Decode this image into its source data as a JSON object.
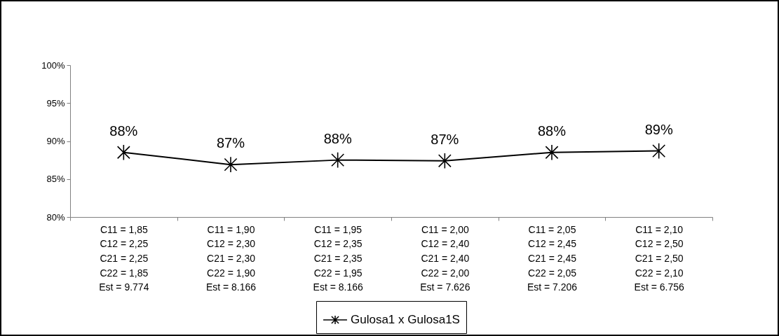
{
  "chart_data": {
    "type": "line",
    "categories": [
      "C11 = 1,85\nC12 = 2,25\nC21 = 2,25\nC22 = 1,85\nEst = 9.774",
      "C11 = 1,90\nC12 = 2,30\nC21 = 2,30\nC22 = 1,90\nEst = 8.166",
      "C11 = 1,95\nC12 = 2,35\nC21 = 2,35\nC22 = 1,95\nEst = 8.166",
      "C11 = 2,00\nC12 = 2,40\nC21 = 2,40\nC22 = 2,00\nEst = 7.626",
      "C11 = 2,05\nC12 = 2,45\nC21 = 2,45\nC22 = 2,05\nEst = 7.206",
      "C11 = 2,10\nC12 = 2,50\nC21 = 2,50\nC22 = 2,10\nEst = 6.756"
    ],
    "series": [
      {
        "name": "Gulosa1 x Gulosa1S",
        "color": "#000000",
        "values": [
          88.5,
          86.9,
          87.5,
          87.4,
          88.5,
          88.7
        ],
        "value_labels": [
          "88%",
          "87%",
          "88%",
          "87%",
          "88%",
          "89%"
        ]
      }
    ],
    "ylim": [
      80,
      100
    ],
    "yticks": [
      {
        "value": 80,
        "label": "80%"
      },
      {
        "value": 85,
        "label": "85%"
      },
      {
        "value": 90,
        "label": "90%"
      },
      {
        "value": 95,
        "label": "95%"
      },
      {
        "value": 100,
        "label": "100%"
      }
    ],
    "grid": false,
    "legend": "bottom",
    "marker": "cross",
    "line_style": "solid"
  }
}
